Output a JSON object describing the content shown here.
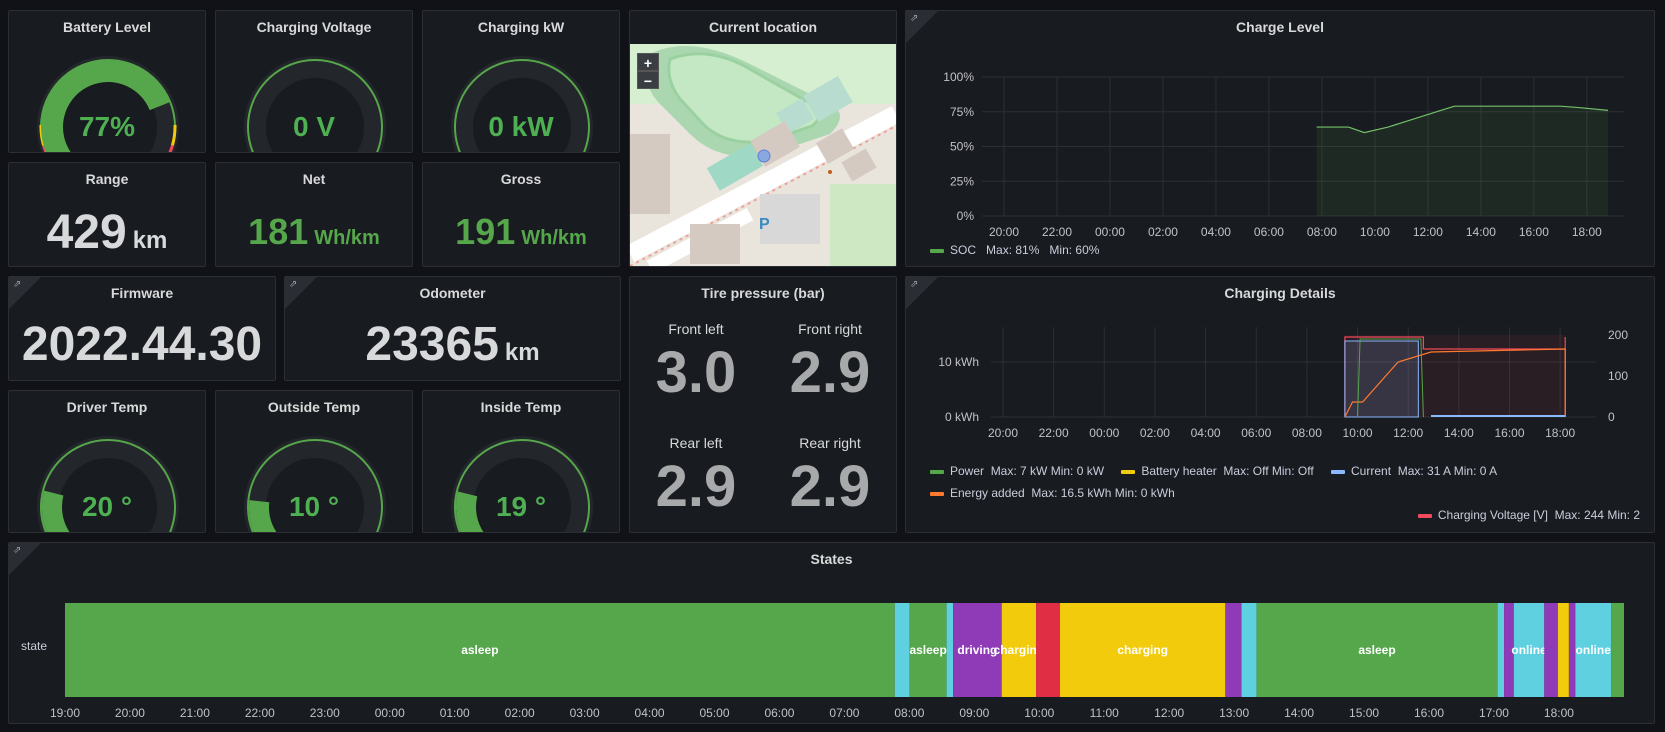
{
  "panels": {
    "battery_level": {
      "title": "Battery Level",
      "value": "77%"
    },
    "charging_voltage": {
      "title": "Charging Voltage",
      "value": "0 V"
    },
    "charging_kw": {
      "title": "Charging kW",
      "value": "0 kW"
    },
    "current_location": {
      "title": "Current location",
      "zoom_in": "+",
      "zoom_out": "−",
      "parking_label": "P"
    },
    "range": {
      "title": "Range",
      "value": "429",
      "unit": "km"
    },
    "net": {
      "title": "Net",
      "value": "181",
      "unit": "Wh/km"
    },
    "gross": {
      "title": "Gross",
      "value": "191",
      "unit": "Wh/km"
    },
    "firmware": {
      "title": "Firmware",
      "value": "2022.44.30"
    },
    "odometer": {
      "title": "Odometer",
      "value": "23365",
      "unit": "km"
    },
    "tire_pressure": {
      "title": "Tire pressure (bar)",
      "front_left": {
        "label": "Front left",
        "value": "3.0"
      },
      "front_right": {
        "label": "Front right",
        "value": "2.9"
      },
      "rear_left": {
        "label": "Rear left",
        "value": "2.9"
      },
      "rear_right": {
        "label": "Rear right",
        "value": "2.9"
      }
    },
    "driver_temp": {
      "title": "Driver Temp",
      "value": "20 °"
    },
    "outside_temp": {
      "title": "Outside Temp",
      "value": "10 °"
    },
    "inside_temp": {
      "title": "Inside Temp",
      "value": "19 °"
    },
    "charge_level": {
      "title": "Charge Level",
      "legend": {
        "name": "SOC",
        "max": "Max: 81%",
        "min": "Min: 60%"
      }
    },
    "charging_details": {
      "title": "Charging Details",
      "legend": [
        {
          "name": "Power",
          "stats": "Max: 7 kW   Min: 0 kW",
          "color": "#56a64b"
        },
        {
          "name": "Battery heater",
          "stats": "Max: Off   Min: Off",
          "color": "#f2cc0c"
        },
        {
          "name": "Current",
          "stats": "Max: 31 A   Min: 0 A",
          "color": "#8ab8ff"
        },
        {
          "name": "Energy added",
          "stats": "Max: 16.5 kWh   Min: 0 kWh",
          "color": "#ff7a2f"
        },
        {
          "name": "Charging Voltage [V]",
          "stats": "Max: 244   Min: 2",
          "color": "#f2495c"
        }
      ]
    },
    "states": {
      "title": "States",
      "row_label": "state"
    }
  },
  "gauge_values": {
    "battery_level": 77,
    "driver_temp": 20,
    "outside_temp": 10,
    "inside_temp": 19
  },
  "colors": {
    "green": "#56a64b",
    "yellow": "#f2cc0c",
    "purple": "#8f3bb8",
    "cyan": "#5ed0e0",
    "red": "#e02f44",
    "orange": "#ff7a2f",
    "blue": "#8ab8ff"
  },
  "chart_data": [
    {
      "type": "line",
      "title": "Charge Level",
      "x_ticks": [
        "20:00",
        "22:00",
        "00:00",
        "02:00",
        "04:00",
        "06:00",
        "08:00",
        "10:00",
        "12:00",
        "14:00",
        "16:00",
        "18:00"
      ],
      "y_ticks": [
        "0%",
        "25%",
        "50%",
        "75%",
        "100%"
      ],
      "ylim": [
        0,
        100
      ],
      "series": [
        {
          "name": "SOC",
          "x": [
            7.8,
            9.0,
            9.6,
            10.5,
            11.5,
            12.5,
            13.0,
            14.0,
            16.0,
            17.0,
            17.7,
            18.8
          ],
          "values": [
            64,
            64,
            60,
            64,
            70,
            76,
            79,
            79,
            79,
            79,
            78,
            76
          ]
        }
      ]
    },
    {
      "type": "line",
      "title": "Charging Details",
      "x_ticks": [
        "20:00",
        "22:00",
        "00:00",
        "02:00",
        "04:00",
        "06:00",
        "08:00",
        "10:00",
        "12:00",
        "14:00",
        "16:00",
        "18:00"
      ],
      "y_left_ticks": [
        "0 kWh",
        "10 kWh"
      ],
      "y_right_ticks": [
        "0",
        "100",
        "200"
      ]
    },
    {
      "type": "state-timeline",
      "title": "States",
      "x_ticks": [
        "19:00",
        "20:00",
        "21:00",
        "22:00",
        "23:00",
        "00:00",
        "01:00",
        "02:00",
        "03:00",
        "04:00",
        "05:00",
        "06:00",
        "07:00",
        "08:00",
        "09:00",
        "10:00",
        "11:00",
        "12:00",
        "13:00",
        "14:00",
        "15:00",
        "16:00",
        "17:00",
        "18:00"
      ],
      "segments": [
        {
          "label": "asleep",
          "start": 0,
          "end": 12.8,
          "color": "#56a64b"
        },
        {
          "label": "",
          "start": 12.8,
          "end": 13.03,
          "color": "#5ed0e0"
        },
        {
          "label": "asleep",
          "start": 13.03,
          "end": 13.6,
          "color": "#56a64b"
        },
        {
          "label": "",
          "start": 13.6,
          "end": 13.7,
          "color": "#5ed0e0"
        },
        {
          "label": "driving",
          "start": 13.7,
          "end": 14.45,
          "color": "#8f3bb8"
        },
        {
          "label": "charging",
          "start": 14.45,
          "end": 14.98,
          "color": "#f2cc0c"
        },
        {
          "label": "",
          "start": 14.98,
          "end": 15.35,
          "color": "#e02f44"
        },
        {
          "label": "charging",
          "start": 15.35,
          "end": 17.9,
          "color": "#f2cc0c"
        },
        {
          "label": "",
          "start": 17.9,
          "end": 18.15,
          "color": "#8f3bb8"
        },
        {
          "label": "",
          "start": 18.15,
          "end": 18.38,
          "color": "#5ed0e0"
        },
        {
          "label": "asleep",
          "start": 18.38,
          "end": 22.1,
          "color": "#56a64b"
        },
        {
          "label": "",
          "start": 22.1,
          "end": 22.2,
          "color": "#5ed0e0"
        },
        {
          "label": "",
          "start": 22.2,
          "end": 22.35,
          "color": "#8f3bb8"
        },
        {
          "label": "online",
          "start": 22.35,
          "end": 22.82,
          "color": "#5ed0e0"
        },
        {
          "label": "",
          "start": 22.82,
          "end": 23.03,
          "color": "#8f3bb8"
        },
        {
          "label": "",
          "start": 23.03,
          "end": 23.2,
          "color": "#f2cc0c"
        },
        {
          "label": "",
          "start": 23.2,
          "end": 23.3,
          "color": "#8f3bb8"
        },
        {
          "label": "online",
          "start": 23.3,
          "end": 23.85,
          "color": "#5ed0e0"
        },
        {
          "label": "",
          "start": 23.85,
          "end": 24.05,
          "color": "#56a64b"
        }
      ]
    }
  ]
}
